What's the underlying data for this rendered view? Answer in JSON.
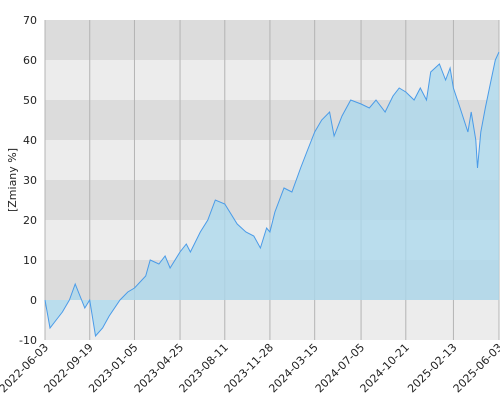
{
  "chart_data": {
    "type": "area",
    "y_label": "[Zmiany %]",
    "x": [
      "2022-06-03",
      "2022-06-15",
      "2022-06-30",
      "2022-07-15",
      "2022-08-01",
      "2022-08-15",
      "2022-09-07",
      "2022-09-19",
      "2022-10-03",
      "2022-10-20",
      "2022-11-05",
      "2022-12-01",
      "2022-12-20",
      "2023-01-05",
      "2023-02-01",
      "2023-02-12",
      "2023-03-05",
      "2023-03-20",
      "2023-04-01",
      "2023-04-25",
      "2023-05-10",
      "2023-05-20",
      "2023-06-13",
      "2023-07-01",
      "2023-07-19",
      "2023-08-11",
      "2023-09-10",
      "2023-10-01",
      "2023-10-20",
      "2023-11-05",
      "2023-11-20",
      "2023-11-28",
      "2023-12-10",
      "2024-01-01",
      "2024-01-20",
      "2024-02-10",
      "2024-02-25",
      "2024-03-15",
      "2024-04-01",
      "2024-04-20",
      "2024-05-01",
      "2024-05-20",
      "2024-06-10",
      "2024-07-05",
      "2024-07-25",
      "2024-08-10",
      "2024-09-01",
      "2024-09-20",
      "2024-10-05",
      "2024-10-21",
      "2024-11-10",
      "2024-11-25",
      "2024-12-10",
      "2024-12-20",
      "2025-01-10",
      "2025-01-25",
      "2025-02-05",
      "2025-02-13",
      "2025-03-01",
      "2025-03-20",
      "2025-03-28",
      "2025-04-08",
      "2025-04-12",
      "2025-04-20",
      "2025-05-01",
      "2025-05-15",
      "2025-05-25",
      "2025-06-03"
    ],
    "series": [
      {
        "color": "#4a9be8",
        "fill": "#a9d8ee",
        "values": [
          0,
          -7,
          -5,
          -3,
          0,
          4,
          -2,
          0,
          -9,
          -7,
          -4,
          0,
          2,
          3,
          6,
          10,
          9,
          11,
          8,
          12,
          14,
          12,
          17,
          20,
          25,
          24,
          19,
          17,
          16,
          13,
          18,
          17,
          22,
          28,
          27,
          33,
          37,
          42,
          45,
          47,
          41,
          46,
          50,
          49,
          48,
          50,
          47,
          51,
          53,
          52,
          50,
          53,
          50,
          57,
          59,
          55,
          58,
          53,
          48,
          42,
          47,
          40,
          33,
          42,
          48,
          55,
          60,
          62
        ]
      }
    ],
    "xlim": [
      "2022-06-03",
      "2025-06-03"
    ],
    "xticks": [
      "2022-06-03",
      "2022-09-19",
      "2023-01-05",
      "2023-04-25",
      "2023-08-11",
      "2023-11-28",
      "2024-03-15",
      "2024-07-05",
      "2024-10-21",
      "2025-02-13",
      "2025-06-03"
    ],
    "ylim": [
      -10,
      70
    ],
    "yticks": [
      -10,
      0,
      10,
      20,
      30,
      40,
      50,
      60,
      70
    ],
    "grid": true
  }
}
